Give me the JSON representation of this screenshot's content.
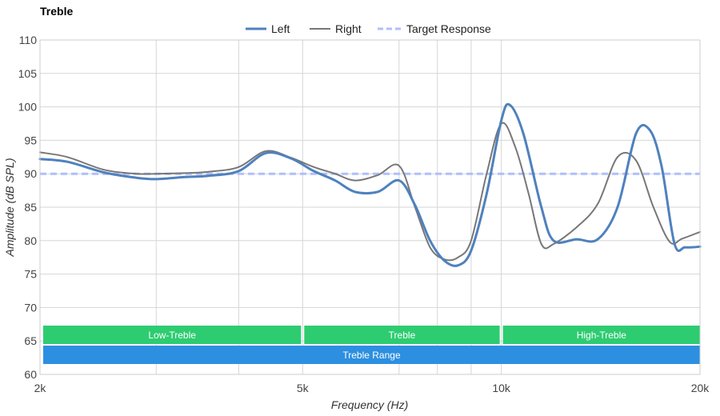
{
  "chart_data": {
    "type": "line",
    "title": "Treble",
    "xlabel": "Frequency (Hz)",
    "ylabel": "Amplitude (dB SPL)",
    "x_scale": "log",
    "xlim": [
      2000,
      20000
    ],
    "ylim": [
      60,
      110
    ],
    "y_ticks": [
      60,
      65,
      70,
      75,
      80,
      85,
      90,
      95,
      100,
      105,
      110
    ],
    "x_ticks": [
      {
        "value": 2000,
        "label": "2k"
      },
      {
        "value": 5000,
        "label": "5k"
      },
      {
        "value": 10000,
        "label": "10k"
      },
      {
        "value": 20000,
        "label": "20k"
      }
    ],
    "x_gridlines": [
      3000,
      4000,
      5000,
      7000,
      8000,
      9000,
      10000
    ],
    "grid": true,
    "legend_position": "top-center",
    "series": [
      {
        "name": "Left",
        "color": "#4f81bd",
        "style": "solid-thick",
        "x": [
          2000,
          2200,
          2500,
          2800,
          3000,
          3300,
          3600,
          4000,
          4400,
          4800,
          5200,
          5600,
          6000,
          6500,
          7000,
          7400,
          7800,
          8200,
          8600,
          9000,
          9500,
          10000,
          10300,
          10800,
          11500,
          12000,
          13000,
          14000,
          15000,
          16000,
          16800,
          17500,
          18300,
          19000,
          20000
        ],
        "values": [
          92.2,
          91.8,
          90.2,
          89.4,
          89.2,
          89.5,
          89.7,
          90.4,
          93.1,
          92.3,
          90.4,
          89.0,
          87.3,
          87.3,
          89.0,
          85.3,
          80.0,
          77.0,
          76.3,
          78.5,
          87.0,
          98.0,
          100.3,
          96.0,
          85.0,
          80.0,
          80.2,
          80.2,
          85.0,
          96.0,
          96.5,
          91.0,
          79.5,
          79.0,
          79.1
        ]
      },
      {
        "name": "Right",
        "color": "#777777",
        "style": "solid",
        "x": [
          2000,
          2200,
          2500,
          2800,
          3000,
          3300,
          3600,
          4000,
          4400,
          4800,
          5200,
          5600,
          6000,
          6500,
          7000,
          7400,
          7800,
          8200,
          8600,
          9000,
          9500,
          10000,
          10500,
          11000,
          11500,
          12000,
          13000,
          14000,
          15000,
          16000,
          17000,
          18000,
          18800,
          20000
        ],
        "values": [
          93.2,
          92.5,
          90.6,
          90.0,
          90.0,
          90.1,
          90.3,
          91.0,
          93.4,
          92.4,
          91.0,
          90.0,
          89.0,
          89.8,
          91.2,
          85.0,
          79.0,
          77.2,
          77.5,
          80.0,
          90.0,
          97.5,
          94.0,
          87.0,
          79.5,
          79.5,
          82.0,
          85.5,
          92.5,
          92.0,
          85.0,
          79.8,
          80.3,
          81.3
        ]
      },
      {
        "name": "Target Response",
        "color": "#aebfff",
        "style": "dashed",
        "x": [
          2000,
          20000
        ],
        "values": [
          90,
          90
        ]
      }
    ],
    "bands": [
      {
        "label": "Low-Treble",
        "from": 2000,
        "to": 5000,
        "color": "#2ecc71",
        "row": 1
      },
      {
        "label": "Treble",
        "from": 5000,
        "to": 10000,
        "color": "#2ecc71",
        "row": 1
      },
      {
        "label": "High-Treble",
        "from": 10000,
        "to": 20000,
        "color": "#2ecc71",
        "row": 1
      },
      {
        "label": "Treble Range",
        "from": 2000,
        "to": 20000,
        "color": "#2d8fe0",
        "row": 2
      }
    ]
  }
}
